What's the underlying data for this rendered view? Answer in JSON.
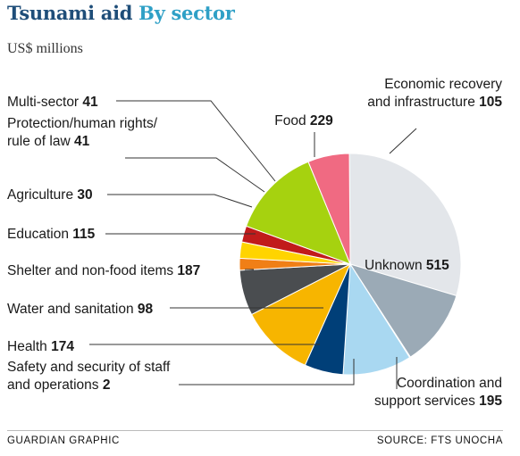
{
  "header": {
    "title_main": "Tsunami aid",
    "title_accent": "By sector",
    "units": "US$ millions"
  },
  "footer": {
    "credit": "GUARDIAN GRAPHIC",
    "source": "SOURCE: FTS UNOCHA"
  },
  "chart_data": {
    "type": "pie",
    "title": "Tsunami aid By sector",
    "subtitle": "US$ millions",
    "slices": [
      {
        "lines": [
          "Unknown"
        ],
        "value": 515,
        "color": "#e3e6ea"
      },
      {
        "lines": [
          "Coordination and",
          "support services"
        ],
        "value": 195,
        "color": "#9baab6"
      },
      {
        "lines": [
          "Safety and security of staff",
          "and operations"
        ],
        "value": 2,
        "color": "#1d2c3a"
      },
      {
        "lines": [
          "Health"
        ],
        "value": 174,
        "color": "#a9d8f1"
      },
      {
        "lines": [
          "Water and sanitation"
        ],
        "value": 98,
        "color": "#003f78"
      },
      {
        "lines": [
          "Shelter and non-food items"
        ],
        "value": 187,
        "color": "#f7b500"
      },
      {
        "lines": [
          "Education"
        ],
        "value": 115,
        "color": "#4a4d50"
      },
      {
        "lines": [
          "Agriculture"
        ],
        "value": 30,
        "color": "#f07f16"
      },
      {
        "lines": [
          "Protection/human rights/",
          "rule of law"
        ],
        "value": 41,
        "color": "#ffd400"
      },
      {
        "lines": [
          "Multi-sector"
        ],
        "value": 41,
        "color": "#c11b1b"
      },
      {
        "lines": [
          "Food"
        ],
        "value": 229,
        "color": "#a6d20f"
      },
      {
        "lines": [
          "Economic recovery",
          "and infrastructure"
        ],
        "value": 105,
        "color": "#f06a82"
      }
    ]
  }
}
